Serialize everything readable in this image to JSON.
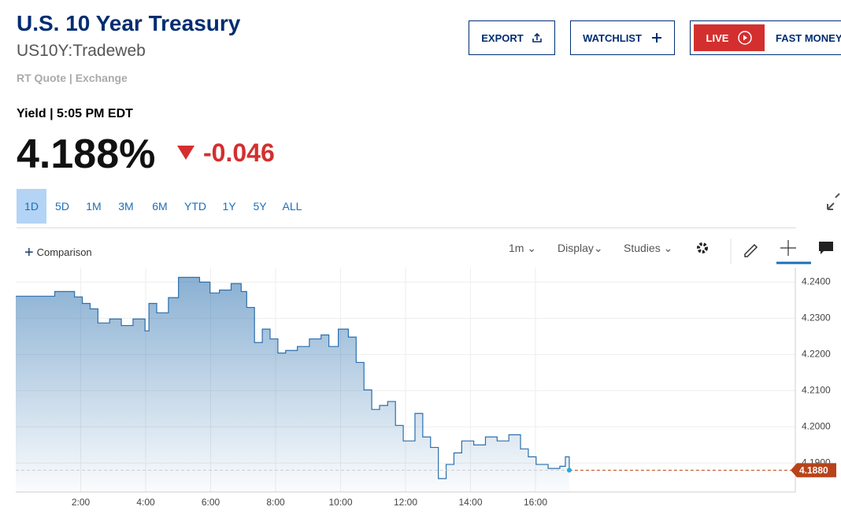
{
  "header": {
    "title": "U.S. 10 Year Treasury",
    "symbol": "US10Y:Tradeweb",
    "source": "RT Quote | Exchange"
  },
  "buttons": {
    "export": "EXPORT",
    "watchlist": "WATCHLIST",
    "live": "LIVE",
    "show": "FAST MONEY"
  },
  "quote": {
    "label": "Yield | 5:05 PM EDT",
    "price": "4.188%",
    "change": "-0.046"
  },
  "ranges": [
    "1D",
    "5D",
    "1M",
    "3M",
    "6M",
    "YTD",
    "1Y",
    "5Y",
    "ALL"
  ],
  "toolbar": {
    "comparison": "Comparison",
    "interval": "1m",
    "display": "Display",
    "studies": "Studies"
  },
  "chart_data": {
    "type": "area",
    "color": "#2a6fae",
    "x": [
      0,
      1.16,
      1.2,
      1.81,
      2.05,
      2.29,
      2.53,
      2.89,
      3.25,
      3.61,
      3.98,
      4.1,
      4.34,
      4.7,
      5.01,
      5.3,
      5.66,
      5.98,
      6.27,
      6.63,
      6.94,
      7.11,
      7.35,
      7.59,
      7.83,
      8.07,
      8.31,
      8.67,
      9.04,
      9.4,
      9.64,
      9.93,
      10.24,
      10.48,
      10.72,
      10.96,
      11.2,
      11.45,
      11.69,
      11.93,
      12.29,
      12.53,
      12.77,
      13.01,
      13.25,
      13.49,
      13.73,
      14.1,
      14.46,
      14.82,
      15.18,
      15.54,
      15.78,
      16.02,
      16.39,
      16.75,
      16.92,
      17.04
    ],
    "values": [
      4.2361,
      4.2361,
      4.2374,
      4.2359,
      4.2341,
      4.2326,
      4.2287,
      4.2298,
      4.228,
      4.2298,
      4.2265,
      4.2341,
      4.2315,
      4.2357,
      4.2413,
      4.2413,
      4.24,
      4.237,
      4.2378,
      4.2396,
      4.2374,
      4.233,
      4.2233,
      4.227,
      4.2243,
      4.2204,
      4.2211,
      4.2222,
      4.2243,
      4.2254,
      4.2222,
      4.227,
      4.2248,
      4.2178,
      4.2102,
      4.2048,
      4.2059,
      4.207,
      4.2004,
      4.1961,
      4.2037,
      4.1972,
      4.1943,
      4.1857,
      4.1896,
      4.1928,
      4.1961,
      4.195,
      4.1972,
      4.1961,
      4.1978,
      4.1939,
      4.1917,
      4.1896,
      4.1885,
      4.1891,
      4.1917,
      4.188
    ],
    "xlim": [
      0,
      24
    ],
    "ylim": [
      4.182,
      4.244
    ],
    "xticks": [
      {
        "value": 2,
        "label": "2:00"
      },
      {
        "value": 4,
        "label": "4:00"
      },
      {
        "value": 6,
        "label": "6:00"
      },
      {
        "value": 8,
        "label": "8:00"
      },
      {
        "value": 10,
        "label": "10:00"
      },
      {
        "value": 12,
        "label": "12:00"
      },
      {
        "value": 14,
        "label": "14:00"
      },
      {
        "value": 16,
        "label": "16:00"
      }
    ],
    "yticks": [
      {
        "value": 4.19,
        "label": "4.1900"
      },
      {
        "value": 4.2,
        "label": "4.2000"
      },
      {
        "value": 4.21,
        "label": "4.2100"
      },
      {
        "value": 4.22,
        "label": "4.2200"
      },
      {
        "value": 4.23,
        "label": "4.2300"
      },
      {
        "value": 4.24,
        "label": "4.2400"
      }
    ],
    "last_label": {
      "value": 4.188,
      "label": "4.1880"
    },
    "grid": true
  }
}
